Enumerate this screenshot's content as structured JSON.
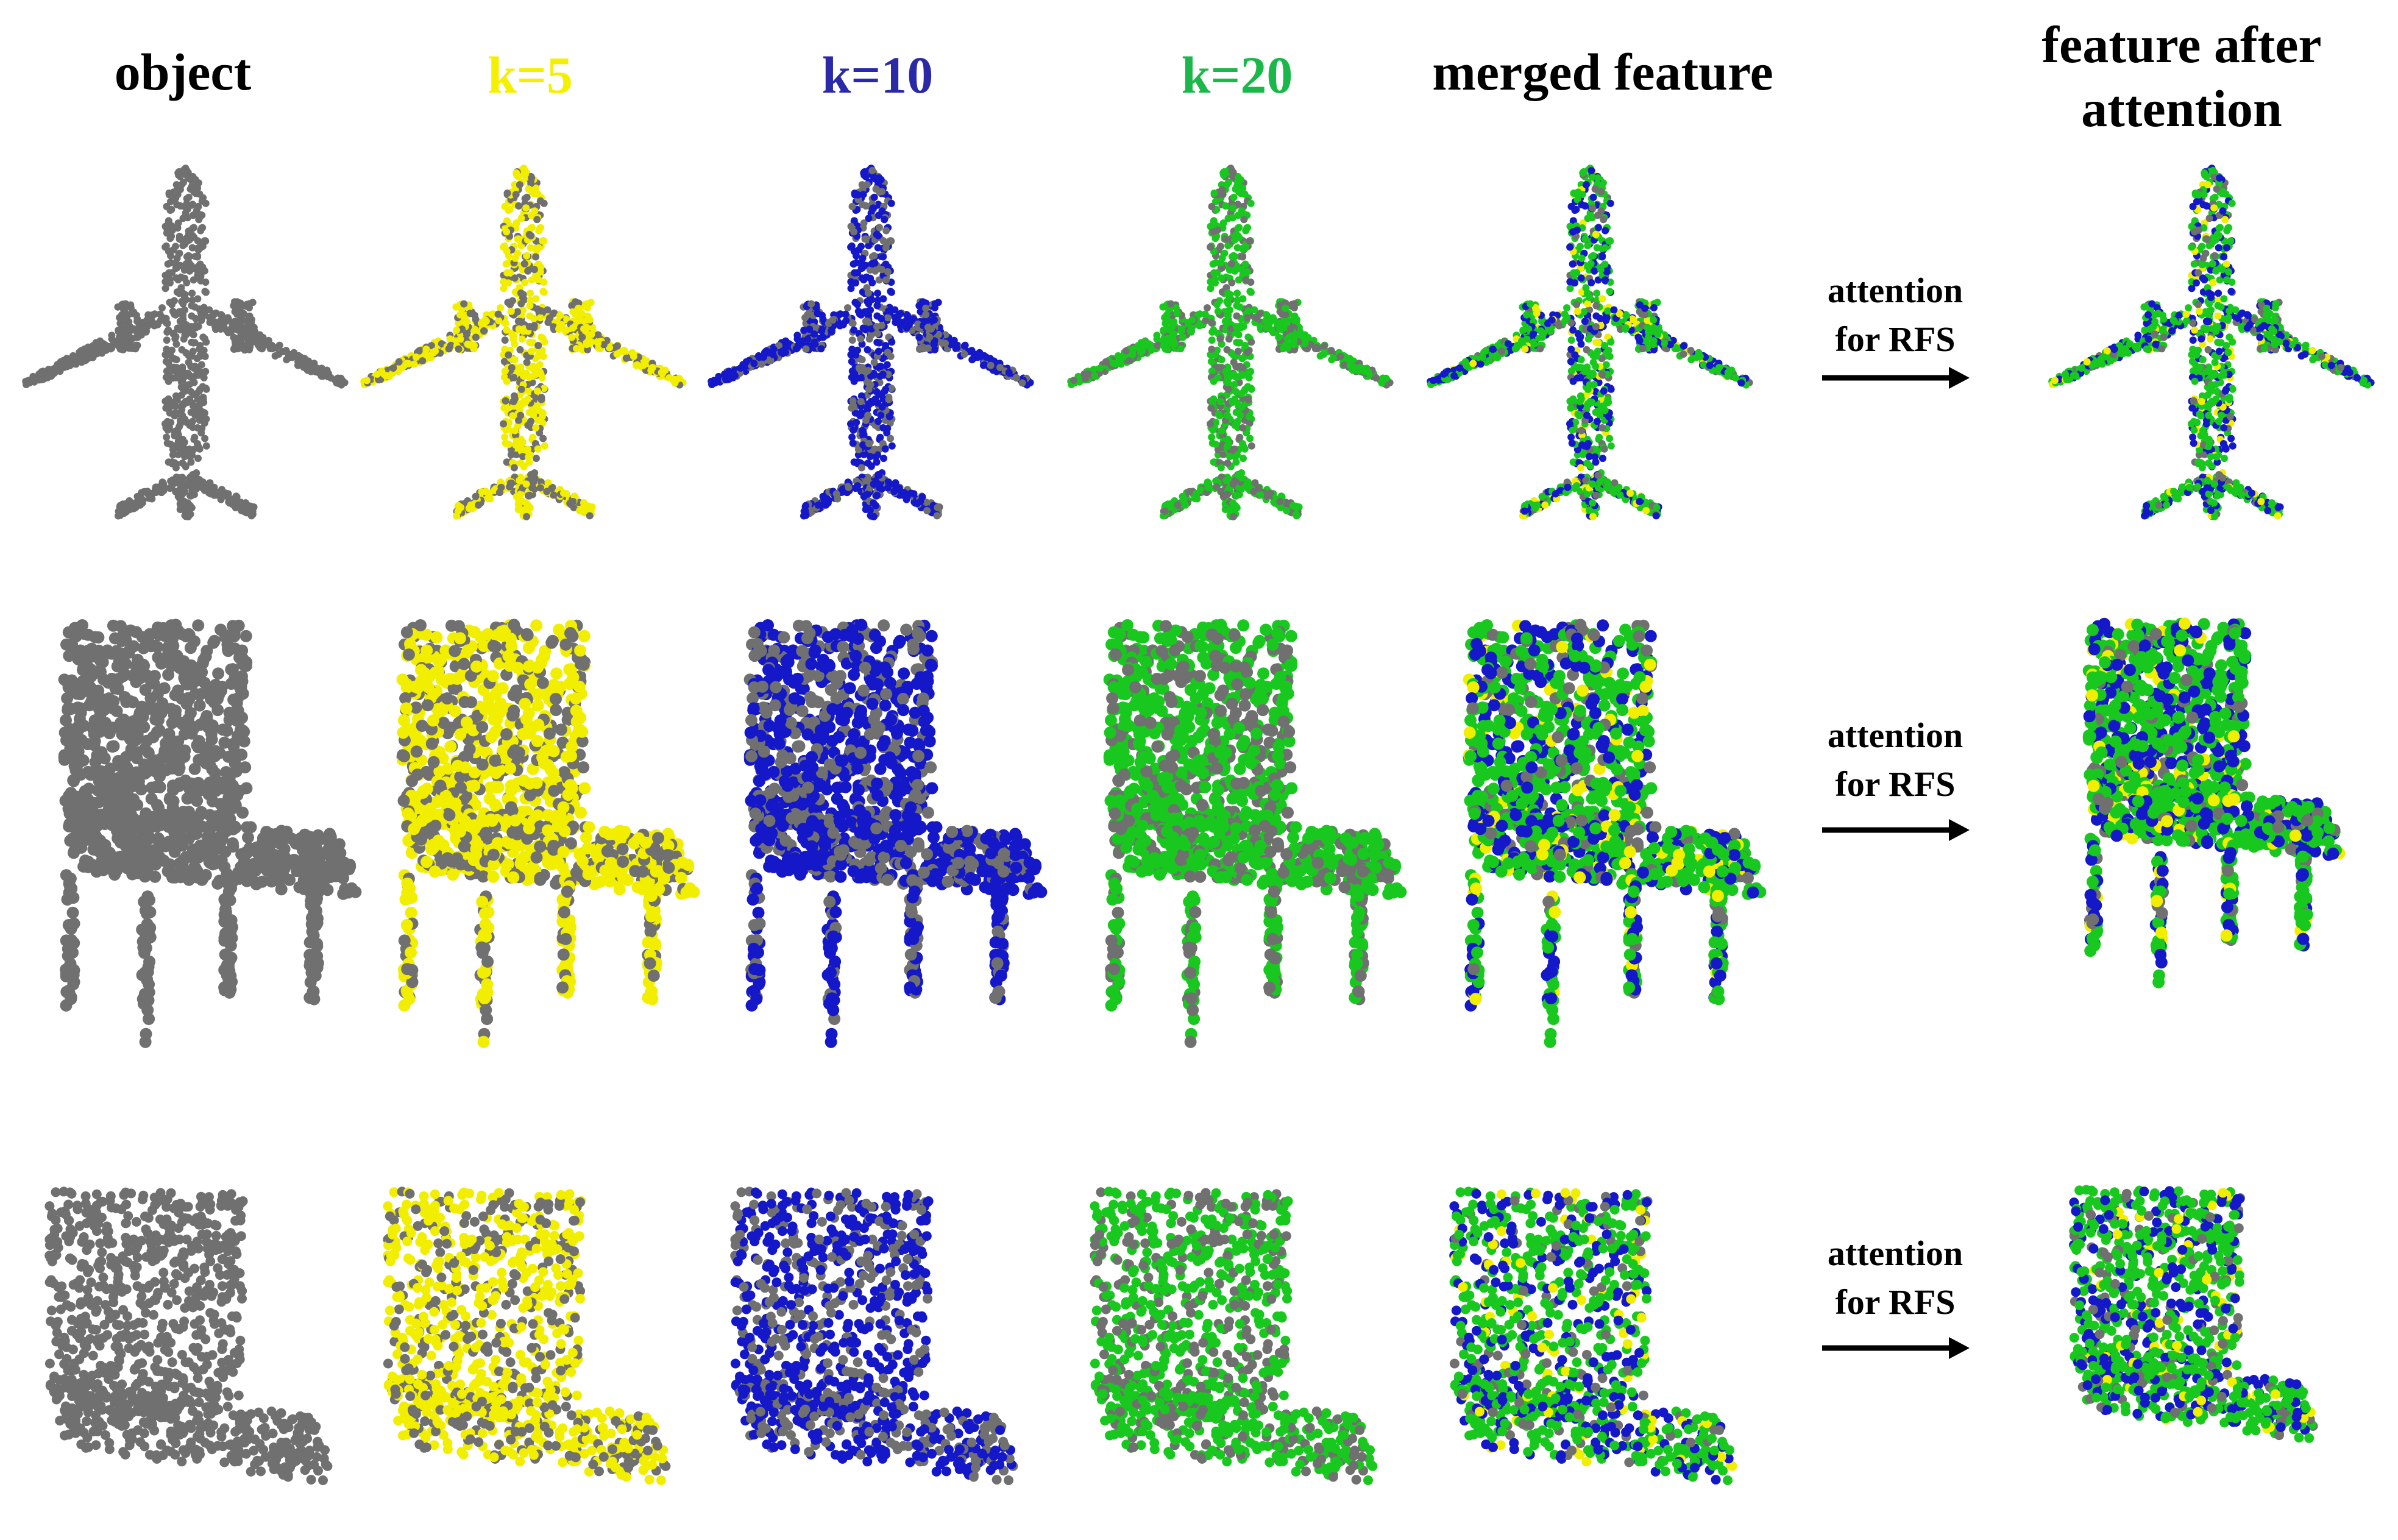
{
  "headers": {
    "object": "object",
    "k5": "k=5",
    "k10": "k=10",
    "k20": "k=20",
    "merged": "merged feature",
    "after_line1": "feature after",
    "after_line2": "attention"
  },
  "arrow_label": {
    "line1": "attention",
    "line2": "for RFS"
  },
  "colors": {
    "gray": "#707070",
    "yellow": "#f2ee00",
    "blue": "#1418c8",
    "green": "#19c81e",
    "header_k5": "#f5f000",
    "header_k10": "#2a2aa8",
    "header_k20": "#1ab84a",
    "text": "#000000"
  },
  "rows": [
    "airplane",
    "chair",
    "l-shaped-panel"
  ],
  "columns": [
    "object",
    "k=5",
    "k=10",
    "k=20",
    "merged feature",
    "feature after attention"
  ]
}
